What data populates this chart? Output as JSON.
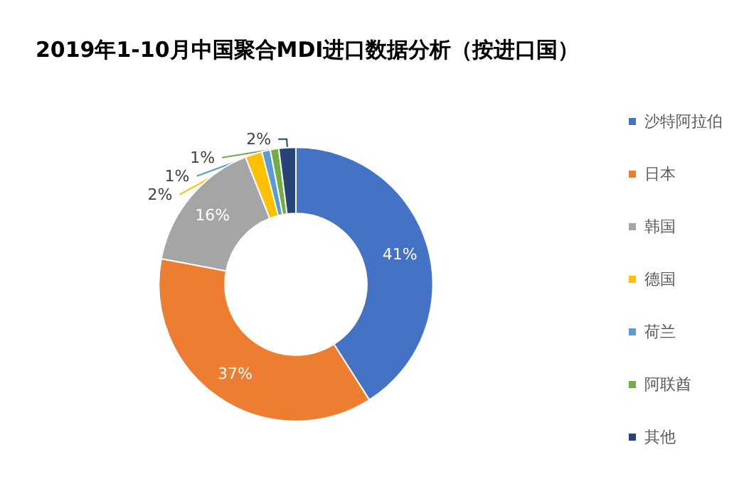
{
  "chart_data": {
    "type": "donut",
    "title": "2019年1-10月中国聚合MDI进口数据分析（按进口国）",
    "categories": [
      "沙特阿拉伯",
      "日本",
      "韩国",
      "德国",
      "荷兰",
      "阿联酋",
      "其他"
    ],
    "values": [
      41,
      37,
      16,
      2,
      1,
      1,
      2
    ],
    "colors": [
      "#4472c4",
      "#ed7d31",
      "#a5a5a5",
      "#ffc000",
      "#5b9bd5",
      "#70ad47",
      "#264478"
    ],
    "value_labels": [
      "41%",
      "37%",
      "16%",
      "2%",
      "1%",
      "1%",
      "2%"
    ],
    "legend": "right"
  }
}
